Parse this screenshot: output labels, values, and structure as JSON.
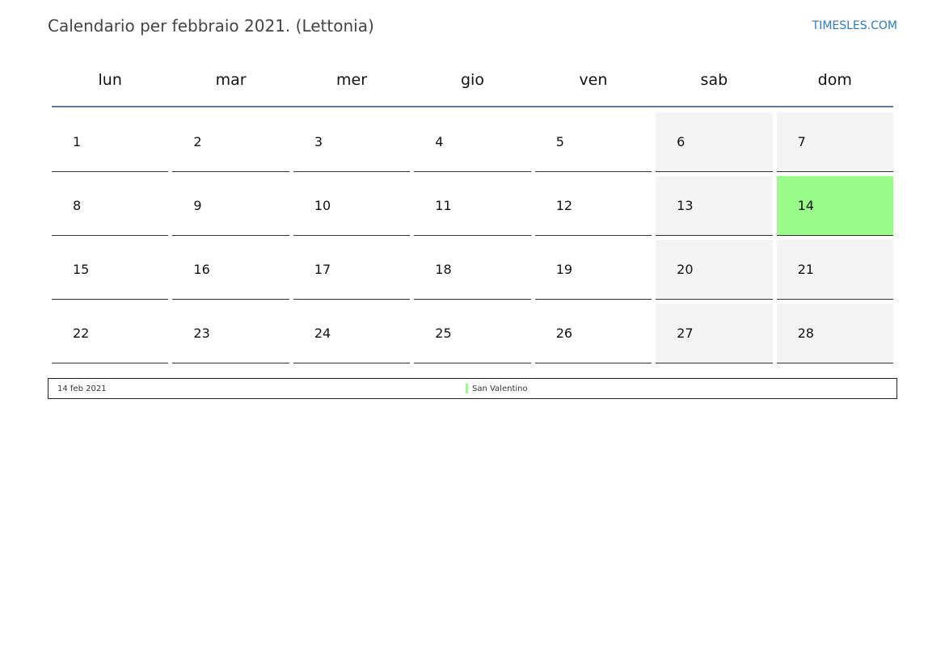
{
  "header": {
    "title": "Calendario per febbraio 2021. (Lettonia)",
    "site": "TIMESLES.COM"
  },
  "weekdays": [
    "lun",
    "mar",
    "mer",
    "gio",
    "ven",
    "sab",
    "dom"
  ],
  "colors": {
    "weekend": "#f4f4f4",
    "holiday": "#99fb88",
    "header_line": "#5b7aa3",
    "link": "#2a7ac8"
  },
  "weeks": [
    [
      {
        "day": "1"
      },
      {
        "day": "2"
      },
      {
        "day": "3"
      },
      {
        "day": "4"
      },
      {
        "day": "5"
      },
      {
        "day": "6",
        "weekend": true
      },
      {
        "day": "7",
        "weekend": true
      }
    ],
    [
      {
        "day": "8"
      },
      {
        "day": "9"
      },
      {
        "day": "10"
      },
      {
        "day": "11"
      },
      {
        "day": "12"
      },
      {
        "day": "13",
        "weekend": true
      },
      {
        "day": "14",
        "weekend": true,
        "holiday": true
      }
    ],
    [
      {
        "day": "15"
      },
      {
        "day": "16"
      },
      {
        "day": "17"
      },
      {
        "day": "18"
      },
      {
        "day": "19"
      },
      {
        "day": "20",
        "weekend": true
      },
      {
        "day": "21",
        "weekend": true
      }
    ],
    [
      {
        "day": "22"
      },
      {
        "day": "23"
      },
      {
        "day": "24"
      },
      {
        "day": "25"
      },
      {
        "day": "26"
      },
      {
        "day": "27",
        "weekend": true
      },
      {
        "day": "28",
        "weekend": true
      }
    ]
  ],
  "legend": {
    "date": "14 feb 2021",
    "name": "San Valentino"
  }
}
